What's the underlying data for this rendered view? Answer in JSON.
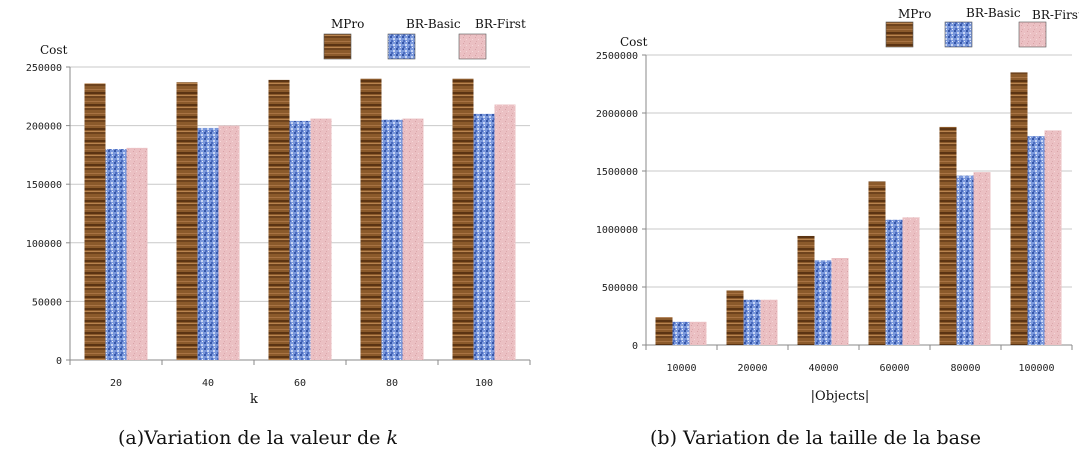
{
  "colors": {
    "mpro": "#8b5a2b",
    "mpro_dark": "#5b3413",
    "basic": "#6f8fd6",
    "basic_dark": "#3556a8",
    "first": "#ebc0c3",
    "first_dark": "#d8a2a7",
    "axis": "#8a8a8a"
  },
  "captions": {
    "a_text": "(a)Variation de la valeur de ",
    "a_var": "k",
    "b_text": "(b) Variation de la taille de la base"
  },
  "chart_data": [
    {
      "type": "bar",
      "ylabel": "Cost",
      "xlabel": "k",
      "ylim": [
        0,
        250000
      ],
      "yticks": [
        "0",
        "50000",
        "100000",
        "150000",
        "200000",
        "250000"
      ],
      "grid": true,
      "legend": "top-right",
      "categories": [
        "20",
        "40",
        "60",
        "80",
        "100"
      ],
      "series": [
        {
          "name": "MPro",
          "values": [
            236000,
            237000,
            239000,
            240000,
            240000
          ]
        },
        {
          "name": "BR-Basic",
          "values": [
            180000,
            198000,
            204000,
            205000,
            210000
          ]
        },
        {
          "name": "BR-First",
          "values": [
            181000,
            200000,
            206000,
            206000,
            218000
          ]
        }
      ]
    },
    {
      "type": "bar",
      "ylabel": "Cost",
      "xlabel": "|Objects|",
      "ylim": [
        0,
        2500000
      ],
      "yticks": [
        "0",
        "500000",
        "1000000",
        "1500000",
        "2000000",
        "2500000"
      ],
      "grid": true,
      "legend": "top-right",
      "categories": [
        "10000",
        "20000",
        "40000",
        "60000",
        "80000",
        "100000"
      ],
      "series": [
        {
          "name": "MPro",
          "values": [
            240000,
            470000,
            940000,
            1410000,
            1880000,
            2350000
          ]
        },
        {
          "name": "BR-Basic",
          "values": [
            200000,
            390000,
            730000,
            1080000,
            1460000,
            1800000
          ]
        },
        {
          "name": "BR-First",
          "values": [
            200000,
            390000,
            750000,
            1100000,
            1490000,
            1850000
          ]
        }
      ]
    }
  ]
}
